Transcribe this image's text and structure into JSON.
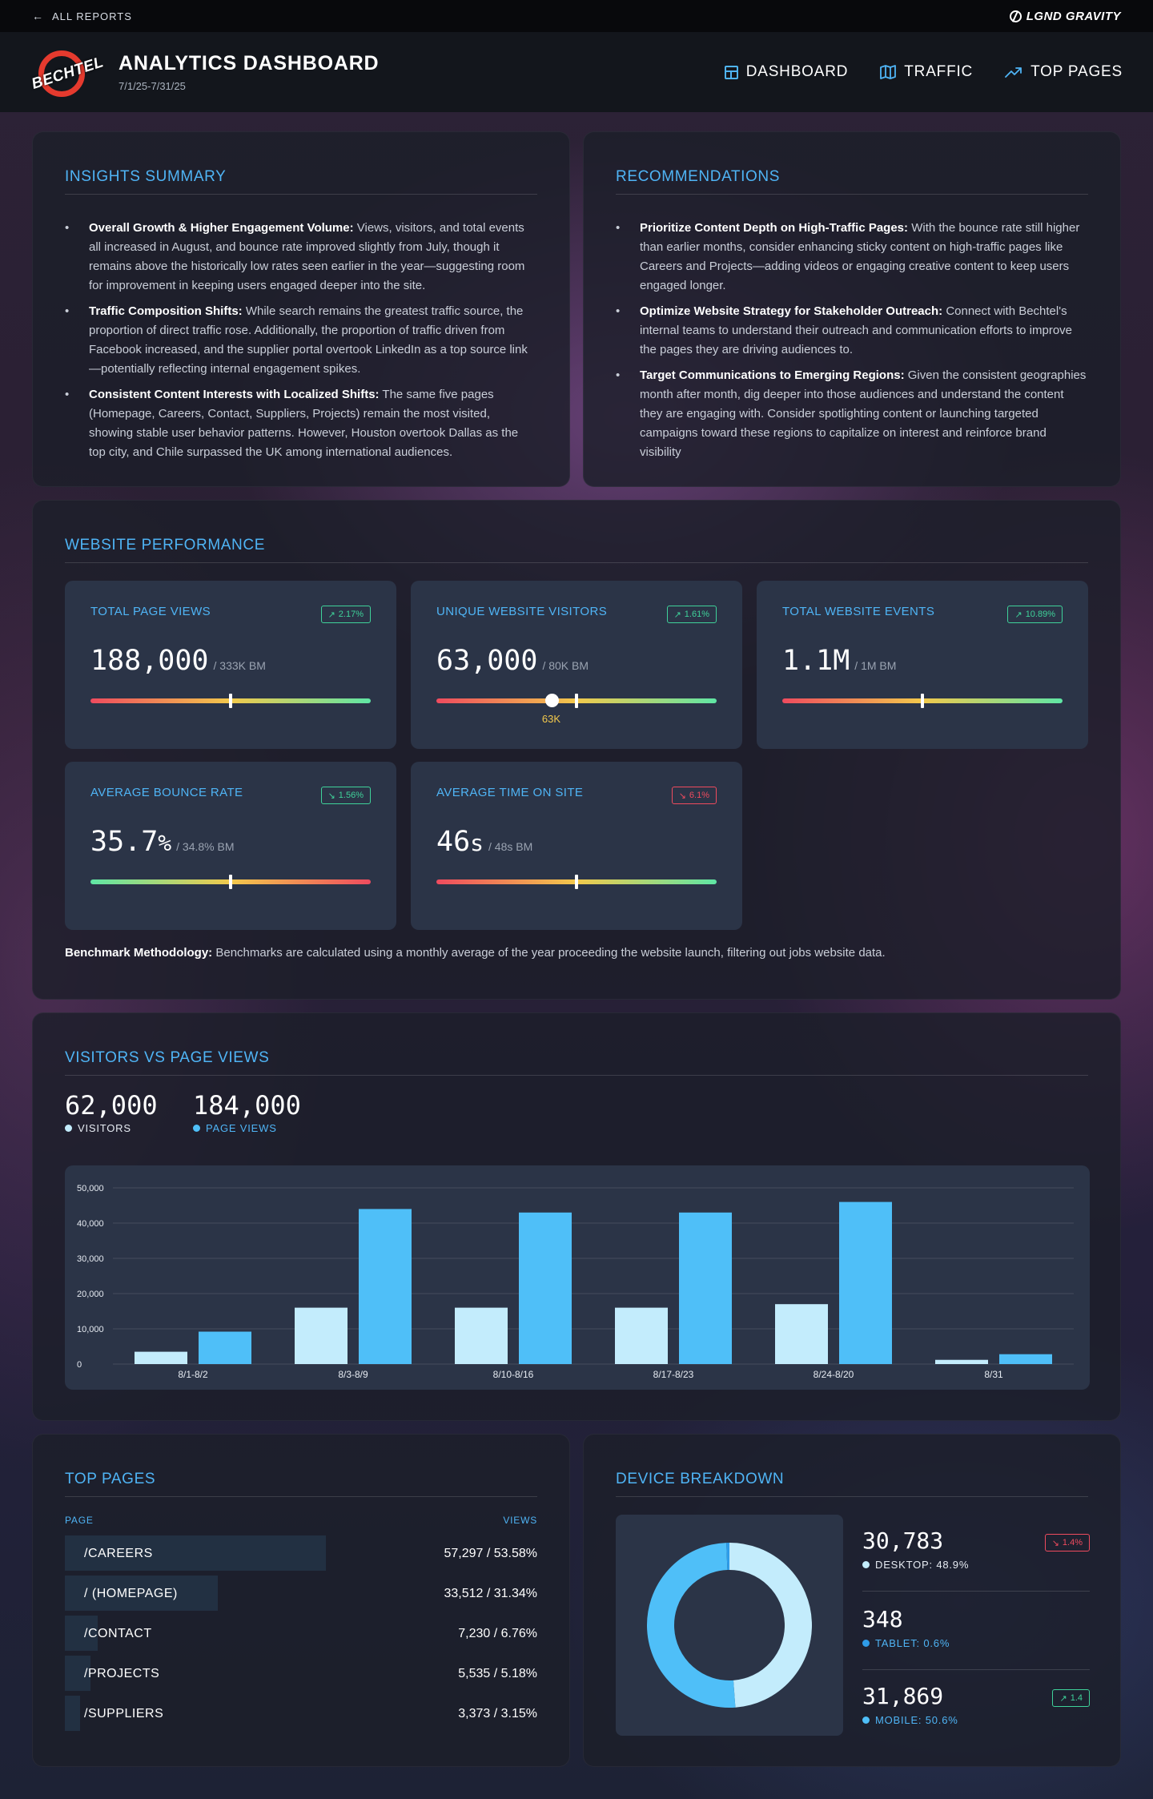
{
  "topbar": {
    "back_label": "ALL REPORTS",
    "brand": "LGND GRAVITY"
  },
  "header": {
    "logo_text": "BECHTEL",
    "title": "ANALYTICS DASHBOARD",
    "date_range": "7/1/25-7/31/25",
    "nav": [
      {
        "label": "DASHBOARD",
        "icon": "dashboard-icon"
      },
      {
        "label": "TRAFFIC",
        "icon": "map-icon"
      },
      {
        "label": "TOP PAGES",
        "icon": "trending-up-icon"
      }
    ]
  },
  "insights": {
    "title": "INSIGHTS SUMMARY",
    "items": [
      {
        "bold": "Overall Growth & Higher Engagement Volume:",
        "text": " Views, visitors, and total events all increased in August, and bounce rate improved slightly from July, though it remains above the historically low rates seen earlier in the year—suggesting room for improvement in keeping users engaged deeper into the site."
      },
      {
        "bold": "Traffic Composition Shifts:",
        "text": " While search remains the greatest traffic source, the proportion of direct traffic rose. Additionally, the proportion of traffic driven from Facebook increased, and the supplier portal overtook LinkedIn as a top source link—potentially reflecting internal engagement spikes."
      },
      {
        "bold": "Consistent Content Interests with Localized Shifts:",
        "text": " The same five pages (Homepage, Careers, Contact, Suppliers, Projects) remain the most visited, showing stable user behavior patterns. However, Houston overtook Dallas as the top city, and Chile surpassed the UK among international audiences."
      }
    ]
  },
  "recommendations": {
    "title": "RECOMMENDATIONS",
    "items": [
      {
        "bold": "Prioritize Content Depth on High-Traffic Pages:",
        "text": " With the bounce rate still higher than earlier months, consider enhancing sticky content on high-traffic pages like Careers and Projects—adding videos or engaging creative content to keep users engaged longer."
      },
      {
        "bold": "Optimize Website Strategy for Stakeholder Outreach:",
        "text": " Connect with Bechtel's internal teams to understand their outreach and communication efforts to improve the pages they are driving audiences to."
      },
      {
        "bold": "Target Communications to Emerging Regions:",
        "text": " Given the consistent geographies month after month, dig deeper into those audiences and understand the content they are engaging with. Consider spotlighting content or launching targeted campaigns toward these regions to capitalize on interest and reinforce brand visibility"
      }
    ]
  },
  "performance": {
    "title": "WEBSITE PERFORMANCE",
    "kpis": [
      {
        "label": "TOTAL PAGE VIEWS",
        "value": "188,000",
        "benchmark": "/ 333K BM",
        "change": "2.17%",
        "direction": "up",
        "benchmark_position": 0.5,
        "reverse": false
      },
      {
        "label": "UNIQUE WEBSITE VISITORS",
        "value": "63,000",
        "benchmark": "/ 80K BM",
        "change": "1.61%",
        "direction": "up",
        "benchmark_position": 0.5,
        "current_position": 0.41,
        "current_label": "63K",
        "reverse": false
      },
      {
        "label": "TOTAL WEBSITE EVENTS",
        "value": "1.1M",
        "benchmark": "/ 1M BM",
        "change": "10.89%",
        "direction": "up",
        "benchmark_position": 0.5,
        "reverse": false
      },
      {
        "label": "AVERAGE BOUNCE RATE",
        "value": "35.7",
        "value_unit": "%",
        "benchmark": "/ 34.8% BM",
        "change": "1.56%",
        "direction": "down-good",
        "benchmark_position": 0.5,
        "reverse": true
      },
      {
        "label": "AVERAGE TIME ON SITE",
        "value": "46",
        "value_unit": "s",
        "benchmark": "/ 48s BM",
        "change": "6.1%",
        "direction": "down",
        "benchmark_position": 0.5,
        "reverse": false
      }
    ],
    "methodology_bold": "Benchmark Methodology:",
    "methodology_text": " Benchmarks are calculated using a monthly average of the year proceeding the website launch, filtering out jobs website data."
  },
  "visitors_vs_views": {
    "title": "VISITORS VS PAGE VIEWS",
    "visitors_total": "62,000",
    "visitors_label": "VISITORS",
    "views_total": "184,000",
    "views_label": "PAGE VIEWS",
    "colors": {
      "visitors": "#c3ecfc",
      "views": "#4fbff8"
    }
  },
  "chart_data": {
    "type": "bar",
    "categories": [
      "8/1-8/2",
      "8/3-8/9",
      "8/10-8/16",
      "8/17-8/23",
      "8/24-8/20",
      "8/31"
    ],
    "series": [
      {
        "name": "VISITORS",
        "values": [
          3500,
          16000,
          16000,
          16000,
          17000,
          1200
        ]
      },
      {
        "name": "PAGE VIEWS",
        "values": [
          9200,
          44000,
          43000,
          43000,
          46000,
          2800
        ]
      }
    ],
    "yticks": [
      "0",
      "10,000",
      "20,000",
      "30,000",
      "40,000",
      "50,000"
    ],
    "ylim": [
      0,
      50000
    ],
    "grid": true
  },
  "top_pages": {
    "title": "TOP PAGES",
    "col_page": "PAGE",
    "col_views": "VIEWS",
    "rows": [
      {
        "page": "/CAREERS",
        "views": "57,297 / 53.58%",
        "share": 0.5358
      },
      {
        "page": "/ (HOMEPAGE)",
        "views": "33,512 / 31.34%",
        "share": 0.3134
      },
      {
        "page": "/CONTACT",
        "views": "7,230 / 6.76%",
        "share": 0.0676
      },
      {
        "page": "/PROJECTS",
        "views": "5,535 / 5.18%",
        "share": 0.0518
      },
      {
        "page": "/SUPPLIERS",
        "views": "3,373 / 3.15%",
        "share": 0.0315
      }
    ]
  },
  "devices": {
    "title": "DEVICE BREAKDOWN",
    "items": [
      {
        "value": "30,783",
        "label": "DESKTOP: 48.9%",
        "share": 0.489,
        "change": "1.4%",
        "direction": "down",
        "color": "#c3ecfc"
      },
      {
        "value": "348",
        "label": "TABLET: 0.6%",
        "share": 0.006,
        "color": "#2f9ce8"
      },
      {
        "value": "31,869",
        "label": "MOBILE: 50.6%",
        "share": 0.506,
        "change": "1.4",
        "direction": "up",
        "color": "#4fbff8"
      }
    ]
  }
}
